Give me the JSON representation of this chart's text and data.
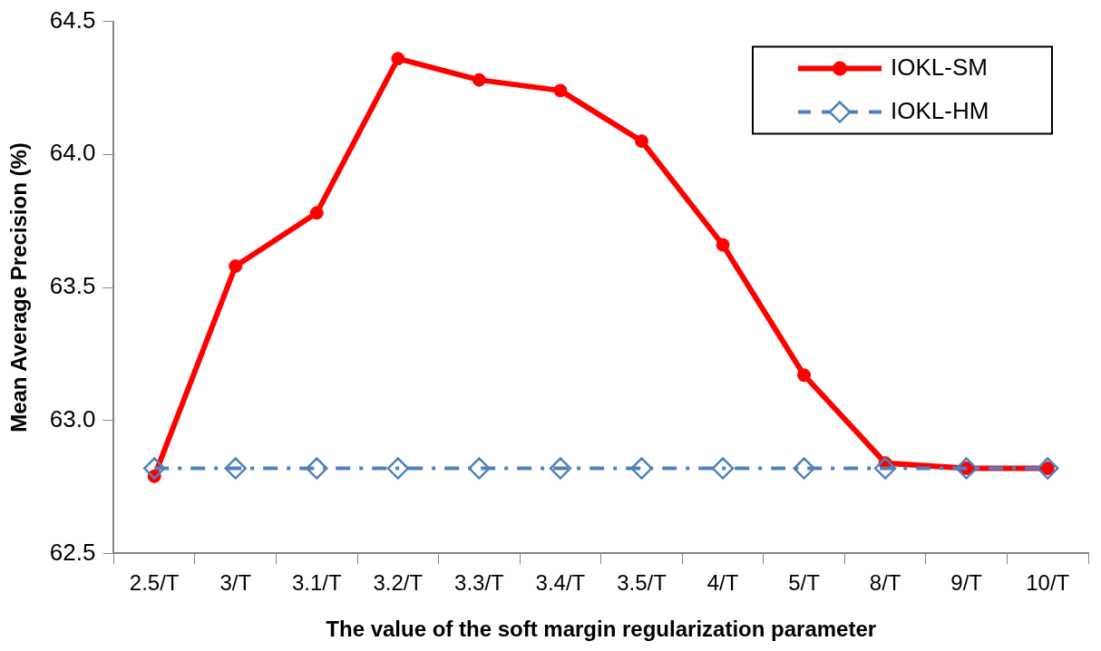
{
  "chart_data": {
    "type": "line",
    "xlabel": "The value of the soft margin regularization parameter",
    "ylabel": "Mean Average Precision (%)",
    "categories": [
      "2.5/T",
      "3/T",
      "3.1/T",
      "3.2/T",
      "3.3/T",
      "3.4/T",
      "3.5/T",
      "4/T",
      "5/T",
      "8/T",
      "9/T",
      "10/T"
    ],
    "series": [
      {
        "name": "IOKL-SM",
        "color": "#ff0000",
        "marker": "circle",
        "line_style": "solid",
        "values": [
          62.79,
          63.58,
          63.78,
          64.36,
          64.28,
          64.24,
          64.05,
          63.66,
          63.17,
          62.84,
          62.82,
          62.82
        ]
      },
      {
        "name": "IOKL-HM",
        "color": "#4f81bd",
        "marker": "diamond",
        "line_style": "dashed",
        "values": [
          62.82,
          62.82,
          62.82,
          62.82,
          62.82,
          62.82,
          62.82,
          62.82,
          62.82,
          62.82,
          62.82,
          62.82
        ]
      }
    ],
    "ylim": [
      62.5,
      64.5
    ],
    "yticks": [
      62.5,
      {
        "value": 63,
        "label": "63.0"
      },
      63.5,
      {
        "value": 64,
        "label": "64.0"
      },
      64.5
    ],
    "grid": false,
    "legend": "top right"
  }
}
